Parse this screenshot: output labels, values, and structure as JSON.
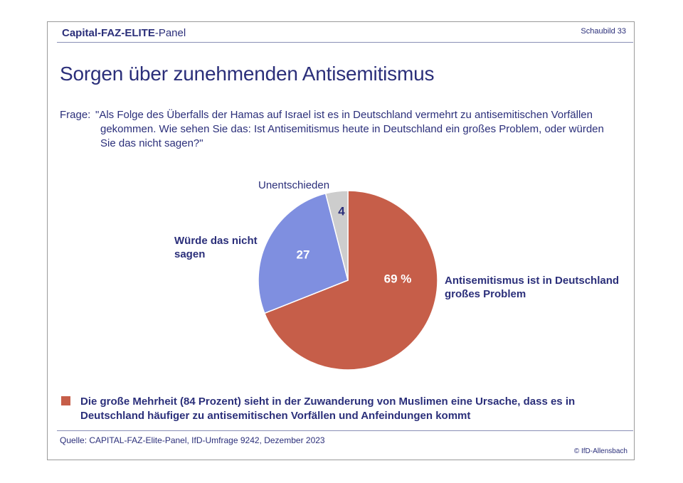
{
  "header": {
    "brand_part1": "Capital-FAZ-ELITE",
    "brand_part2": "-Panel",
    "figure_label": "Schaubild 33"
  },
  "title": "Sorgen über zunehmenden Antisemitismus",
  "question": {
    "label": "Frage:",
    "text": "\"Als Folge des Überfalls der Hamas auf Israel ist es in Deutschland vermehrt zu antisemitischen Vorfällen gekommen. Wie sehen Sie das: Ist Antisemitismus heute in Deutschland ein großes Problem, oder würden Sie das nicht sagen?\""
  },
  "chart_data": {
    "type": "pie",
    "title": "Sorgen über zunehmenden Antisemitismus",
    "unit": "%",
    "slices": [
      {
        "label_lines": [
          "Antisemitismus ist in Deutschland",
          "großes Problem"
        ],
        "value": 69,
        "value_label": "69 %",
        "color": "#c65e49",
        "value_color": "#ffffff"
      },
      {
        "label_lines": [
          "Würde das nicht",
          "sagen"
        ],
        "value": 27,
        "value_label": "27",
        "color": "#7f8fe0",
        "value_color": "#ffffff"
      },
      {
        "label_lines": [
          "Unentschieden"
        ],
        "value": 4,
        "value_label": "4",
        "color": "#cdcdcd",
        "value_color": "#2b2f7a"
      }
    ]
  },
  "footnote": "Die große Mehrheit (84 Prozent) sieht in der Zuwanderung von Muslimen eine Ursache, dass es in Deutschland häufiger zu antisemitischen Vorfällen und Anfeindungen kommt",
  "source": "Quelle: CAPITAL-FAZ-Elite-Panel, IfD-Umfrage 9242, Dezember 2023",
  "copyright": "© IfD-Allensbach",
  "colors": {
    "text": "#2b2f7a",
    "accent": "#c65e49"
  }
}
